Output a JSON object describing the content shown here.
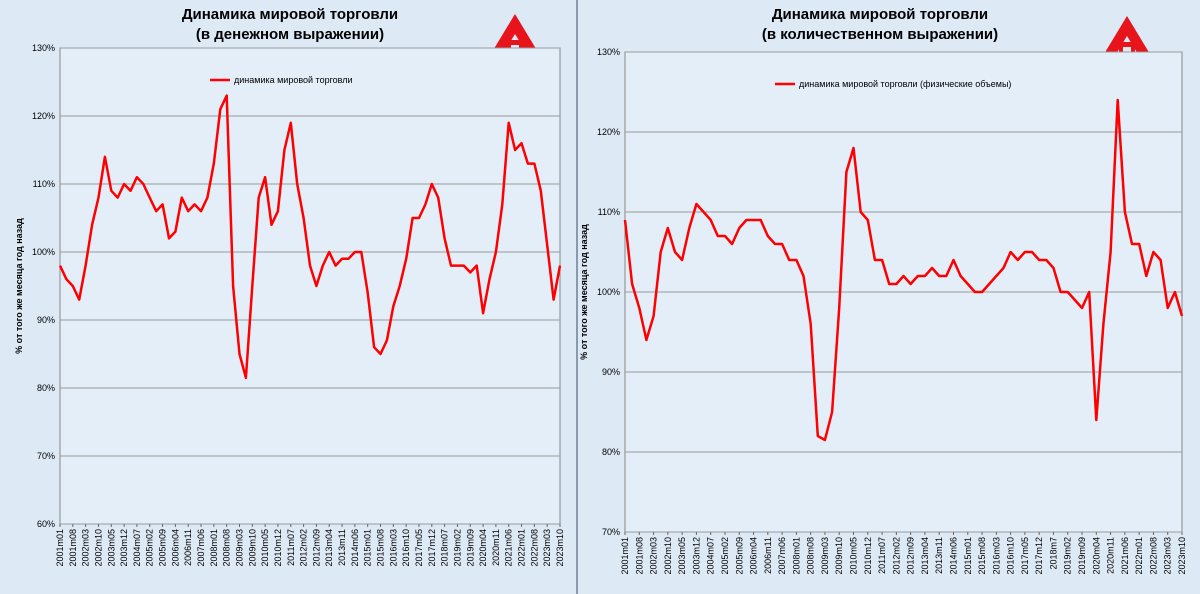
{
  "chart_data": [
    {
      "type": "line",
      "title": "Динамика мировой торговли",
      "subtitle": "(в денежном выражении)",
      "y_label": "% от того же месяца год назад",
      "categories": [
        "2001m01",
        null,
        "2001m08",
        null,
        "2002m03",
        null,
        "2002m10",
        null,
        "2003m05",
        null,
        "2003m12",
        null,
        "2004m07",
        null,
        "2005m02",
        null,
        "2005m09",
        null,
        "2006m04",
        null,
        "2006m11",
        null,
        "2007m06",
        null,
        "2008m01",
        null,
        "2008m08",
        null,
        "2009m03",
        null,
        "2009m10",
        null,
        "2010m05",
        null,
        "2010m12",
        null,
        "2011m07",
        null,
        "2012m02",
        null,
        "2012m09",
        null,
        "2013m04",
        null,
        "2013m11",
        null,
        "2014m06",
        null,
        "2015m01",
        null,
        "2015m08",
        null,
        "2016m03",
        null,
        "2016m10",
        null,
        "2017m05",
        null,
        "2017m12",
        null,
        "2018m07",
        null,
        "2019m02",
        null,
        "2019m09",
        null,
        "2020m04",
        null,
        "2020m11",
        null,
        "2021m06",
        null,
        "2022m01",
        null,
        "2022m08",
        null,
        "2023m03",
        null,
        "2023m10"
      ],
      "series": [
        {
          "name": "динамика мировой торговли",
          "color": "#ff0000",
          "values": [
            98,
            96,
            95,
            93,
            98,
            104,
            108,
            114,
            109,
            108,
            110,
            109,
            111,
            110,
            108,
            106,
            107,
            102,
            103,
            108,
            106,
            107,
            106,
            108,
            113,
            121,
            123,
            95,
            85,
            81.5,
            95,
            108,
            111,
            104,
            106,
            115,
            119,
            110,
            105,
            98,
            95,
            98,
            100,
            98,
            99,
            99,
            100,
            100,
            94,
            86,
            85,
            87,
            92,
            95,
            99,
            105,
            105,
            107,
            110,
            108,
            102,
            98,
            98,
            98,
            97,
            98,
            91,
            96,
            100,
            107,
            119,
            115,
            116,
            113,
            113,
            109,
            101,
            93,
            98
          ]
        }
      ],
      "ylim": [
        60,
        130
      ],
      "yticks": [
        {
          "value": 60,
          "label": "60%"
        },
        {
          "value": 70,
          "label": "70%"
        },
        {
          "value": 80,
          "label": "80%"
        },
        {
          "value": 90,
          "label": "90%"
        },
        {
          "value": 100,
          "label": "100%"
        },
        {
          "value": 110,
          "label": "110%"
        },
        {
          "value": 120,
          "label": "120%"
        },
        {
          "value": 130,
          "label": "130%"
        }
      ],
      "grid": true,
      "legend": "top"
    },
    {
      "type": "line",
      "title": "Динамика мировой торговли",
      "subtitle": "(в количественном выражении)",
      "y_label": "% от того же месяца год назад",
      "categories": [
        "2001m01",
        null,
        "2001m08",
        null,
        "2002m03",
        null,
        "2002m10",
        null,
        "2003m05",
        null,
        "2003m12",
        null,
        "2004m07",
        null,
        "2005m02",
        null,
        "2005m09",
        null,
        "2006m04",
        null,
        "2006m11",
        null,
        "2007m06",
        null,
        "2008m01",
        null,
        "2008m08",
        null,
        "2009m03",
        null,
        "2009m10",
        null,
        "2010m05",
        null,
        "2010m12",
        null,
        "2011m07",
        null,
        "2012m02",
        null,
        "2012m09",
        null,
        "2013m04",
        null,
        "2013m11",
        null,
        "2014m06",
        null,
        "2015m01",
        null,
        "2015m08",
        null,
        "2016m03",
        null,
        "2016m10",
        null,
        "2017m05",
        null,
        "2017m12",
        null,
        "2018m7",
        null,
        "2019m02",
        null,
        "2019m09",
        null,
        "2020m04",
        null,
        "2020m11",
        null,
        "2021m06",
        null,
        "2022m01",
        null,
        "2022m08",
        null,
        "2023m03",
        null,
        "2023m10"
      ],
      "series": [
        {
          "name": "динамика мировой торговли (физические объемы)",
          "color": "#ff0000",
          "values": [
            109,
            101,
            98,
            94,
            97,
            105,
            108,
            105,
            104,
            108,
            111,
            110,
            109,
            107,
            107,
            106,
            108,
            109,
            109,
            109,
            107,
            106,
            106,
            104,
            104,
            102,
            96,
            82,
            81.5,
            85,
            98,
            115,
            118,
            110,
            109,
            104,
            104,
            101,
            101,
            102,
            101,
            102,
            102,
            103,
            102,
            102,
            104,
            102,
            101,
            100,
            100,
            101,
            102,
            103,
            105,
            104,
            105,
            105,
            104,
            104,
            103,
            100,
            100,
            99,
            98,
            100,
            84,
            96,
            105,
            124,
            110,
            106,
            106,
            102,
            105,
            104,
            98,
            100,
            97
          ]
        }
      ],
      "ylim": [
        70,
        130
      ],
      "yticks": [
        {
          "value": 70,
          "label": "70%"
        },
        {
          "value": 80,
          "label": "80%"
        },
        {
          "value": 90,
          "label": "90%"
        },
        {
          "value": 100,
          "label": "100%"
        },
        {
          "value": 110,
          "label": "110%"
        },
        {
          "value": 120,
          "label": "120%"
        },
        {
          "value": 130,
          "label": "130%"
        }
      ],
      "grid": true,
      "legend": "top"
    }
  ]
}
